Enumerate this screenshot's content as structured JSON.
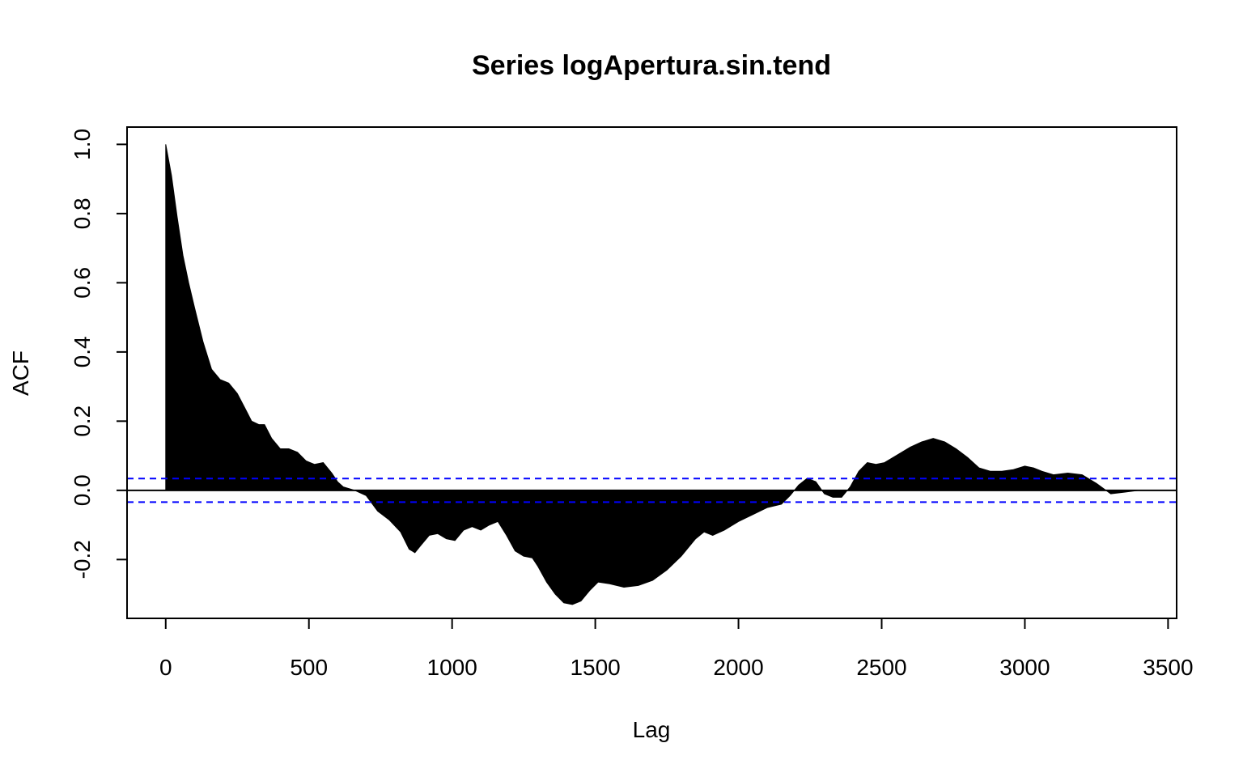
{
  "chart_data": {
    "type": "area",
    "title": "Series logApertura.sin.tend",
    "xlabel": "Lag",
    "ylabel": "ACF",
    "xlim": [
      -135,
      3530
    ],
    "ylim": [
      -0.37,
      1.05
    ],
    "x_ticks": [
      0,
      500,
      1000,
      1500,
      2000,
      2500,
      3000,
      3500
    ],
    "x_tick_labels": [
      "0",
      "500",
      "1000",
      "1500",
      "2000",
      "2500",
      "3000",
      "3500"
    ],
    "y_ticks": [
      -0.2,
      0.0,
      0.2,
      0.4,
      0.6,
      0.8,
      1.0
    ],
    "y_tick_labels": [
      "-0.2",
      "0.0",
      "0.2",
      "0.4",
      "0.6",
      "0.8",
      "1.0"
    ],
    "confidence_bounds": [
      0.034,
      -0.034
    ],
    "colors": {
      "acf": "#000000",
      "bounds": "#0000ff",
      "zero_line": "#000000"
    },
    "series": [
      {
        "x": [
          0,
          20,
          40,
          60,
          80,
          100,
          130,
          160,
          190,
          220,
          250,
          275,
          300,
          325,
          345,
          370,
          400,
          430,
          460,
          490,
          520,
          550,
          580,
          600,
          620,
          640,
          660,
          700,
          740,
          780,
          820,
          850,
          870,
          890,
          920,
          950,
          980,
          1010,
          1040,
          1070,
          1100,
          1130,
          1160,
          1190,
          1220,
          1250,
          1280,
          1300,
          1330,
          1360,
          1390,
          1420,
          1450,
          1480,
          1510,
          1550,
          1600,
          1650,
          1700,
          1750,
          1800,
          1850,
          1880,
          1910,
          1950,
          2000,
          2050,
          2100,
          2150,
          2180,
          2210,
          2240,
          2270,
          2300,
          2330,
          2360,
          2390,
          2420,
          2450,
          2480,
          2510,
          2540,
          2570,
          2600,
          2640,
          2680,
          2720,
          2760,
          2800,
          2840,
          2880,
          2920,
          2960,
          3000,
          3030,
          3060,
          3100,
          3150,
          3200,
          3250,
          3300,
          3350,
          3400
        ],
        "y": [
          1.0,
          0.91,
          0.79,
          0.68,
          0.6,
          0.53,
          0.43,
          0.35,
          0.32,
          0.31,
          0.28,
          0.24,
          0.2,
          0.19,
          0.19,
          0.15,
          0.12,
          0.12,
          0.11,
          0.085,
          0.075,
          0.08,
          0.05,
          0.025,
          0.01,
          0.005,
          0.0,
          -0.015,
          -0.06,
          -0.085,
          -0.12,
          -0.17,
          -0.18,
          -0.16,
          -0.13,
          -0.125,
          -0.14,
          -0.145,
          -0.115,
          -0.105,
          -0.115,
          -0.1,
          -0.09,
          -0.13,
          -0.175,
          -0.19,
          -0.195,
          -0.22,
          -0.265,
          -0.3,
          -0.325,
          -0.33,
          -0.32,
          -0.29,
          -0.265,
          -0.27,
          -0.28,
          -0.275,
          -0.26,
          -0.23,
          -0.19,
          -0.14,
          -0.12,
          -0.13,
          -0.115,
          -0.09,
          -0.07,
          -0.05,
          -0.04,
          -0.015,
          0.015,
          0.035,
          0.025,
          -0.01,
          -0.02,
          -0.02,
          0.01,
          0.055,
          0.08,
          0.075,
          0.08,
          0.095,
          0.11,
          0.125,
          0.14,
          0.15,
          0.14,
          0.12,
          0.095,
          0.065,
          0.055,
          0.055,
          0.06,
          0.07,
          0.065,
          0.055,
          0.045,
          0.05,
          0.045,
          0.02,
          -0.01,
          -0.005,
          0.0
        ]
      }
    ]
  }
}
